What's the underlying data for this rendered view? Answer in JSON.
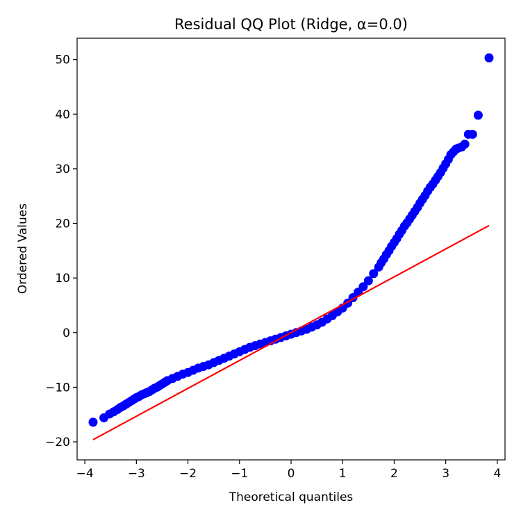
{
  "chart_data": {
    "type": "scatter",
    "title": "Residual QQ Plot (Ridge, α=0.0)",
    "xlabel": "Theoretical quantiles",
    "ylabel": "Ordered Values",
    "xlim": [
      -4.15,
      4.15
    ],
    "ylim": [
      -23.3,
      53.9
    ],
    "xticks": [
      {
        "value": -4,
        "label": "−4"
      },
      {
        "value": -3,
        "label": "−3"
      },
      {
        "value": -2,
        "label": "−2"
      },
      {
        "value": -1,
        "label": "−1"
      },
      {
        "value": 0,
        "label": "0"
      },
      {
        "value": 1,
        "label": "1"
      },
      {
        "value": 2,
        "label": "2"
      },
      {
        "value": 3,
        "label": "3"
      },
      {
        "value": 4,
        "label": "4"
      }
    ],
    "yticks": [
      {
        "value": -20,
        "label": "−20"
      },
      {
        "value": -10,
        "label": "−10"
      },
      {
        "value": 0,
        "label": "0"
      },
      {
        "value": 10,
        "label": "10"
      },
      {
        "value": 20,
        "label": "20"
      },
      {
        "value": 30,
        "label": "30"
      },
      {
        "value": 40,
        "label": "40"
      },
      {
        "value": 50,
        "label": "50"
      }
    ],
    "grid": false,
    "legend": "none",
    "series": [
      {
        "kind": "points",
        "color": "#0000ff",
        "x": [
          -3.84,
          -3.63,
          -3.52,
          -3.44,
          -3.37,
          -3.31,
          -3.25,
          -3.2,
          -3.15,
          -3.1,
          -3.05,
          -3.0,
          -2.95,
          -2.9,
          -2.85,
          -2.8,
          -2.75,
          -2.7,
          -2.65,
          -2.6,
          -2.55,
          -2.5,
          -2.45,
          -2.4,
          -2.3,
          -2.2,
          -2.1,
          -2.0,
          -1.9,
          -1.8,
          -1.7,
          -1.6,
          -1.5,
          -1.4,
          -1.3,
          -1.2,
          -1.1,
          -1.0,
          -0.9,
          -0.8,
          -0.7,
          -0.6,
          -0.5,
          -0.4,
          -0.3,
          -0.2,
          -0.1,
          0.0,
          0.1,
          0.2,
          0.3,
          0.4,
          0.5,
          0.6,
          0.7,
          0.8,
          0.9,
          1.0,
          1.1,
          1.2,
          1.3,
          1.4,
          1.5,
          1.6,
          1.7,
          1.75,
          1.8,
          1.85,
          1.9,
          1.95,
          2.0,
          2.05,
          2.1,
          2.15,
          2.2,
          2.25,
          2.3,
          2.35,
          2.4,
          2.45,
          2.5,
          2.55,
          2.6,
          2.65,
          2.7,
          2.75,
          2.8,
          2.85,
          2.9,
          2.95,
          3.0,
          3.05,
          3.1,
          3.15,
          3.2,
          3.25,
          3.31,
          3.37,
          3.44,
          3.52,
          3.63,
          3.84
        ],
        "y": [
          -16.4,
          -15.6,
          -14.9,
          -14.5,
          -14.1,
          -13.7,
          -13.4,
          -13.1,
          -12.8,
          -12.5,
          -12.2,
          -11.9,
          -11.7,
          -11.4,
          -11.2,
          -11.0,
          -10.8,
          -10.5,
          -10.2,
          -10.0,
          -9.7,
          -9.4,
          -9.1,
          -8.8,
          -8.4,
          -8.0,
          -7.6,
          -7.3,
          -6.9,
          -6.5,
          -6.2,
          -5.9,
          -5.5,
          -5.1,
          -4.7,
          -4.3,
          -3.9,
          -3.5,
          -3.1,
          -2.7,
          -2.4,
          -2.1,
          -1.8,
          -1.5,
          -1.2,
          -0.9,
          -0.6,
          -0.3,
          0.0,
          0.3,
          0.6,
          1.0,
          1.4,
          1.9,
          2.5,
          3.1,
          3.8,
          4.5,
          5.4,
          6.4,
          7.4,
          8.4,
          9.5,
          10.8,
          12.0,
          12.8,
          13.5,
          14.3,
          15.0,
          15.8,
          16.5,
          17.2,
          18.0,
          18.7,
          19.5,
          20.1,
          20.8,
          21.5,
          22.2,
          22.9,
          23.7,
          24.4,
          25.1,
          25.9,
          26.6,
          27.2,
          27.9,
          28.6,
          29.3,
          30.1,
          30.9,
          31.7,
          32.6,
          33.1,
          33.6,
          33.8,
          34.0,
          34.5,
          36.3,
          36.3,
          39.8,
          50.3
        ]
      },
      {
        "kind": "fit-line",
        "color": "#ff0000",
        "x": [
          -3.84,
          3.84
        ],
        "y": [
          -19.6,
          19.6
        ]
      }
    ]
  }
}
